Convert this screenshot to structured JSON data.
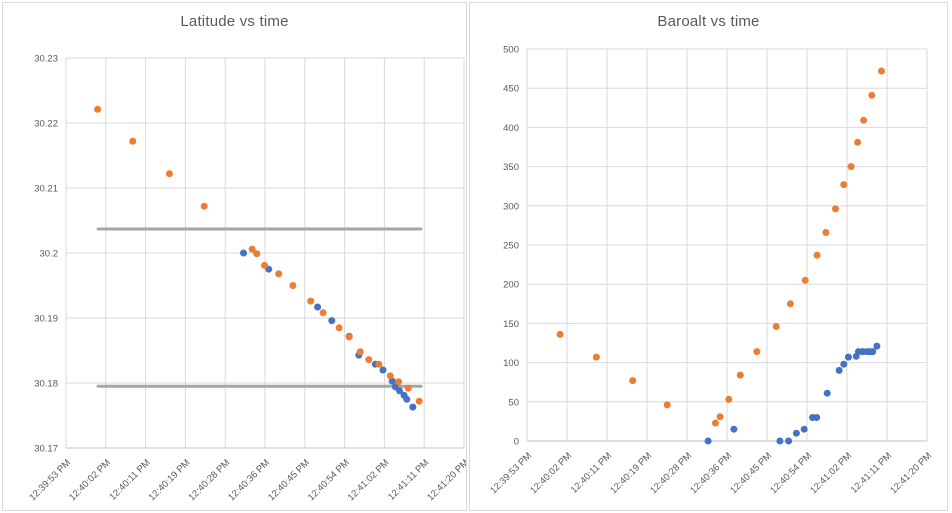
{
  "palette": {
    "series_blue": "#4472C4",
    "series_orange": "#ED7D31",
    "ref_line_gray": "#A6A6A6",
    "gridline": "#D9D9D9",
    "axis_line": "#BFBFBF",
    "text": "#595959",
    "card_border": "#D9D9D9",
    "background": "#FFFFFF"
  },
  "chart_data": [
    {
      "type": "scatter",
      "title": "Latitude vs time",
      "xlabel": "",
      "ylabel": "",
      "x_tick_labels": [
        "12:39:53 PM",
        "12:40:02 PM",
        "12:40:11 PM",
        "12:40:19 PM",
        "12:40:28 PM",
        "12:40:36 PM",
        "12:40:45 PM",
        "12:40:54 PM",
        "12:41:02 PM",
        "12:41:11 PM",
        "12:41:20 PM"
      ],
      "y_tick_labels": [
        "30.23",
        "30.22",
        "30.21",
        "30.2",
        "30.19",
        "30.18",
        "30.17"
      ],
      "y_min": 30.17,
      "y_max": 30.23,
      "t_min": 0,
      "t_max": 87,
      "t_unit": "seconds after 12:39:53 PM",
      "grid": true,
      "legend": "none",
      "series": [
        {
          "name": "latitude-blue",
          "marker": "circle",
          "color_key": "series_blue",
          "points": [
            [
              38.8,
              30.2
            ],
            [
              44.3,
              30.1975
            ],
            [
              55.0,
              30.1917
            ],
            [
              58.1,
              30.1896
            ],
            [
              61.9,
              30.1872
            ],
            [
              64.0,
              30.1843
            ],
            [
              67.6,
              30.1829
            ],
            [
              69.3,
              30.182
            ],
            [
              71.3,
              30.1803
            ],
            [
              72.0,
              30.1794
            ],
            [
              72.9,
              30.1788
            ],
            [
              73.9,
              30.1781
            ],
            [
              74.5,
              30.1775
            ],
            [
              75.8,
              30.1763
            ]
          ]
        },
        {
          "name": "latitude-orange",
          "marker": "circle",
          "color_key": "series_orange",
          "points": [
            [
              6.9,
              30.2221
            ],
            [
              14.6,
              30.2172
            ],
            [
              22.6,
              30.2122
            ],
            [
              30.2,
              30.2072
            ],
            [
              40.7,
              30.2006
            ],
            [
              41.7,
              30.1999
            ],
            [
              43.4,
              30.1981
            ],
            [
              46.5,
              30.1968
            ],
            [
              49.6,
              30.195
            ],
            [
              53.5,
              30.1926
            ],
            [
              56.2,
              30.1908
            ],
            [
              59.7,
              30.1885
            ],
            [
              61.9,
              30.1871
            ],
            [
              64.3,
              30.1848
            ],
            [
              66.2,
              30.1836
            ],
            [
              68.4,
              30.1829
            ],
            [
              70.9,
              30.1811
            ],
            [
              72.7,
              30.1802
            ],
            [
              74.8,
              30.1792
            ],
            [
              77.2,
              30.1772
            ]
          ]
        },
        {
          "name": "upper-reference-line",
          "marker": "line",
          "color_key": "ref_line_gray",
          "points": [
            [
              7.0,
              30.2037
            ],
            [
              77.6,
              30.2037
            ]
          ]
        },
        {
          "name": "lower-reference-line",
          "marker": "line",
          "color_key": "ref_line_gray",
          "points": [
            [
              7.0,
              30.1795
            ],
            [
              77.6,
              30.1795
            ]
          ]
        }
      ]
    },
    {
      "type": "scatter",
      "title": "Baroalt vs time",
      "xlabel": "",
      "ylabel": "",
      "x_tick_labels": [
        "12:39:53 PM",
        "12:40:02 PM",
        "12:40:11 PM",
        "12:40:19 PM",
        "12:40:28 PM",
        "12:40:36 PM",
        "12:40:45 PM",
        "12:40:54 PM",
        "12:41:02 PM",
        "12:41:11 PM",
        "12:41:20 PM"
      ],
      "y_tick_labels": [
        "500",
        "450",
        "400",
        "350",
        "300",
        "250",
        "200",
        "150",
        "100",
        "50",
        "0"
      ],
      "y_min": 0,
      "y_max": 500,
      "t_min": 0,
      "t_max": 87,
      "t_unit": "seconds after 12:39:53 PM",
      "grid": true,
      "legend": "none",
      "series": [
        {
          "name": "baroalt-blue",
          "marker": "circle",
          "color_key": "series_blue",
          "points": [
            [
              39.4,
              0
            ],
            [
              45.0,
              15
            ],
            [
              55.0,
              0
            ],
            [
              56.9,
              0
            ],
            [
              58.6,
              10
            ],
            [
              60.3,
              15
            ],
            [
              62.1,
              30
            ],
            [
              63.0,
              30
            ],
            [
              65.3,
              61
            ],
            [
              67.9,
              90
            ],
            [
              68.9,
              98
            ],
            [
              69.9,
              107
            ],
            [
              71.6,
              108
            ],
            [
              72.1,
              114
            ],
            [
              73.0,
              114
            ],
            [
              73.9,
              114
            ],
            [
              74.6,
              114
            ],
            [
              75.2,
              114
            ],
            [
              76.1,
              121
            ]
          ]
        },
        {
          "name": "baroalt-orange",
          "marker": "circle",
          "color_key": "series_orange",
          "points": [
            [
              7.2,
              136
            ],
            [
              15.1,
              107
            ],
            [
              23.0,
              77
            ],
            [
              30.5,
              46
            ],
            [
              41.0,
              23
            ],
            [
              42.0,
              31
            ],
            [
              43.9,
              53
            ],
            [
              46.4,
              84
            ],
            [
              50.0,
              114
            ],
            [
              54.2,
              146
            ],
            [
              57.3,
              175
            ],
            [
              60.5,
              205
            ],
            [
              63.1,
              237
            ],
            [
              65.0,
              266
            ],
            [
              67.1,
              296
            ],
            [
              68.9,
              327
            ],
            [
              70.5,
              350
            ],
            [
              71.9,
              381
            ],
            [
              73.2,
              409
            ],
            [
              75.0,
              441
            ],
            [
              77.1,
              472
            ]
          ]
        }
      ]
    }
  ]
}
